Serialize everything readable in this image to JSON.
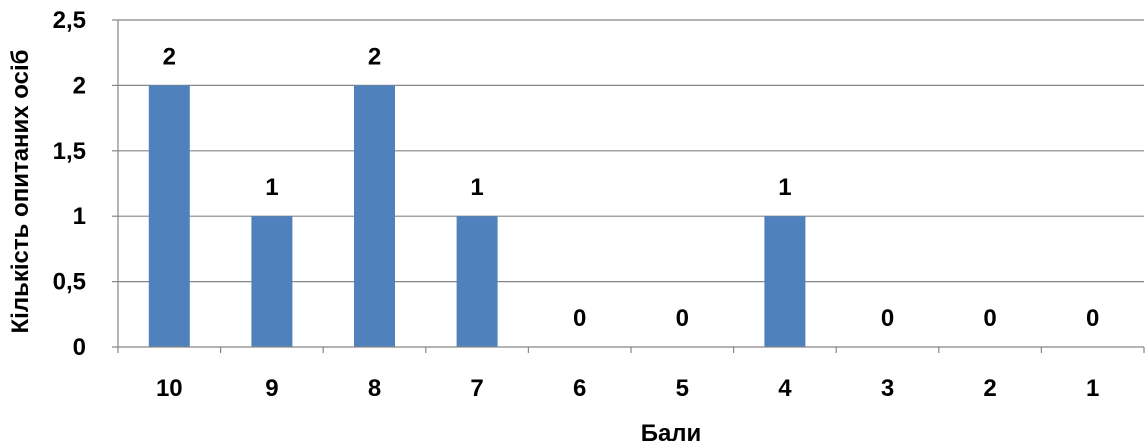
{
  "chart_data": {
    "type": "bar",
    "categories": [
      "10",
      "9",
      "8",
      "7",
      "6",
      "5",
      "4",
      "3",
      "2",
      "1"
    ],
    "series": [
      {
        "values": [
          2,
          1,
          2,
          1,
          0,
          0,
          1,
          0,
          0,
          0
        ]
      }
    ],
    "data_labels": [
      "2",
      "1",
      "2",
      "1",
      "0",
      "0",
      "1",
      "0",
      "0",
      "0"
    ],
    "ylim": [
      0,
      2.5
    ],
    "yticks": [
      "0",
      "0,5",
      "1",
      "1,5",
      "2",
      "2,5"
    ],
    "ylabel": "Кількість опитаних осіб",
    "xlabel": "Бали",
    "grid": true,
    "legend": false,
    "colors": {
      "bar": "#4F81BD",
      "grid": "#868686",
      "axis": "#868686"
    }
  }
}
